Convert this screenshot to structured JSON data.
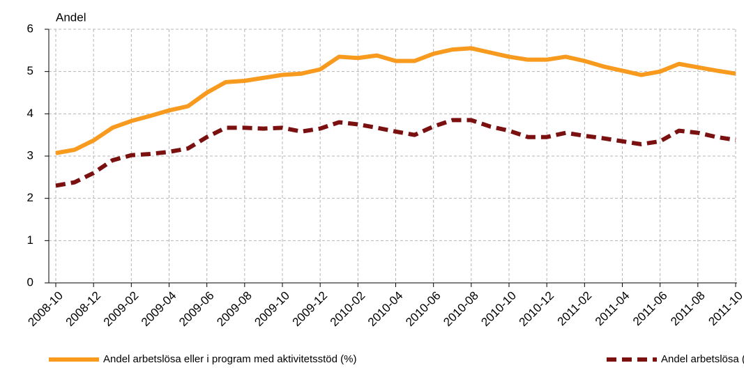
{
  "chart_data": {
    "type": "line",
    "y_label": "Andel",
    "categories": [
      "2008-10",
      null,
      "2008-12",
      null,
      "2009-02",
      null,
      "2009-04",
      null,
      "2009-06",
      null,
      "2009-08",
      null,
      "2009-10",
      null,
      "2009-12",
      null,
      "2010-02",
      null,
      "2010-04",
      null,
      "2010-06",
      null,
      "2010-08",
      null,
      "2010-10",
      null,
      "2010-12",
      null,
      "2011-02",
      null,
      "2011-04",
      null,
      "2011-06",
      null,
      "2011-08",
      null,
      "2011-10"
    ],
    "series": [
      {
        "name": "Andel arbetslösa eller i program med aktivitetsstöd (%)",
        "color": "#f79a1d",
        "dash": false,
        "values": [
          3.07,
          3.15,
          3.37,
          3.67,
          3.83,
          3.95,
          4.08,
          4.18,
          4.5,
          4.75,
          4.78,
          4.85,
          4.92,
          4.95,
          5.05,
          5.35,
          5.32,
          5.38,
          5.25,
          5.25,
          5.42,
          5.52,
          5.55,
          5.45,
          5.35,
          5.28,
          5.28,
          5.35,
          5.25,
          5.12,
          5.02,
          4.92,
          5.0,
          5.18,
          5.1,
          5.02,
          4.95
        ]
      },
      {
        "name": "Andel arbetslösa (%)",
        "color": "#7b1010",
        "dash": true,
        "values": [
          2.3,
          2.38,
          2.6,
          2.9,
          3.02,
          3.05,
          3.1,
          3.18,
          3.45,
          3.67,
          3.67,
          3.65,
          3.67,
          3.58,
          3.65,
          3.8,
          3.75,
          3.67,
          3.58,
          3.5,
          3.7,
          3.85,
          3.85,
          3.7,
          3.6,
          3.45,
          3.45,
          3.55,
          3.48,
          3.42,
          3.35,
          3.28,
          3.35,
          3.6,
          3.55,
          3.45,
          3.38
        ]
      }
    ],
    "ylim": [
      0,
      6
    ],
    "yticks": [
      0,
      1,
      2,
      3,
      4,
      5,
      6
    ],
    "grid": true,
    "legend": "bottom"
  }
}
